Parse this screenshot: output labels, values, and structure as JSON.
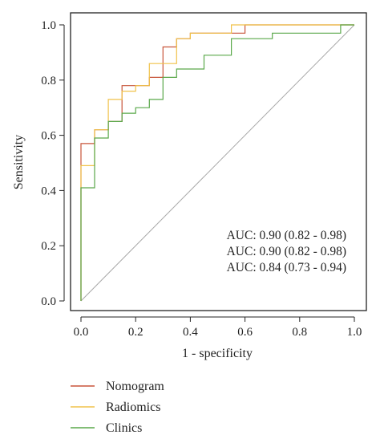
{
  "chart_data": {
    "type": "line",
    "xlabel": "1 - specificity",
    "ylabel": "Sensitivity",
    "xlim": [
      0,
      1
    ],
    "ylim": [
      0,
      1
    ],
    "x_ticks": [
      "0.0",
      "0.2",
      "0.4",
      "0.6",
      "0.8",
      "1.0"
    ],
    "y_ticks": [
      "0.0",
      "0.2",
      "0.4",
      "0.6",
      "0.8",
      "1.0"
    ],
    "grid": false,
    "legend_position": "bottom-left",
    "reference_line": {
      "x": [
        0,
        1
      ],
      "y": [
        0,
        1
      ],
      "color": "#a8a8a8"
    },
    "annotations": [
      "AUC: 0.90 (0.82 - 0.98)",
      "AUC: 0.90 (0.82 - 0.98)",
      "AUC: 0.84 (0.73 - 0.94)"
    ],
    "series": [
      {
        "name": "Nomogram",
        "color": "#c8553a",
        "x": [
          0,
          0,
          0.05,
          0.05,
          0.1,
          0.1,
          0.15,
          0.15,
          0.2,
          0.2,
          0.25,
          0.25,
          0.3,
          0.3,
          0.35,
          0.35,
          0.4,
          0.4,
          0.6,
          0.6,
          1.0
        ],
        "y": [
          0,
          0.57,
          0.57,
          0.62,
          0.62,
          0.65,
          0.65,
          0.78,
          0.78,
          0.78,
          0.78,
          0.81,
          0.81,
          0.92,
          0.92,
          0.95,
          0.95,
          0.97,
          0.97,
          1.0,
          1.0
        ]
      },
      {
        "name": "Radiomics",
        "color": "#f0c24a",
        "x": [
          0,
          0,
          0.05,
          0.05,
          0.1,
          0.1,
          0.15,
          0.15,
          0.2,
          0.2,
          0.25,
          0.25,
          0.3,
          0.3,
          0.35,
          0.35,
          0.4,
          0.4,
          0.55,
          0.55,
          1.0
        ],
        "y": [
          0,
          0.49,
          0.49,
          0.62,
          0.62,
          0.73,
          0.73,
          0.76,
          0.76,
          0.78,
          0.78,
          0.86,
          0.86,
          0.86,
          0.86,
          0.95,
          0.95,
          0.97,
          0.97,
          1.0,
          1.0
        ]
      },
      {
        "name": "Clinics",
        "color": "#5aa84a",
        "x": [
          0,
          0,
          0.05,
          0.05,
          0.1,
          0.1,
          0.15,
          0.15,
          0.2,
          0.2,
          0.25,
          0.25,
          0.3,
          0.3,
          0.35,
          0.35,
          0.45,
          0.45,
          0.55,
          0.55,
          0.7,
          0.7,
          0.95,
          0.95,
          1.0
        ],
        "y": [
          0,
          0.41,
          0.41,
          0.59,
          0.59,
          0.65,
          0.65,
          0.68,
          0.68,
          0.7,
          0.7,
          0.73,
          0.73,
          0.81,
          0.81,
          0.84,
          0.84,
          0.89,
          0.89,
          0.95,
          0.95,
          0.97,
          0.97,
          1.0,
          1.0
        ]
      }
    ]
  }
}
